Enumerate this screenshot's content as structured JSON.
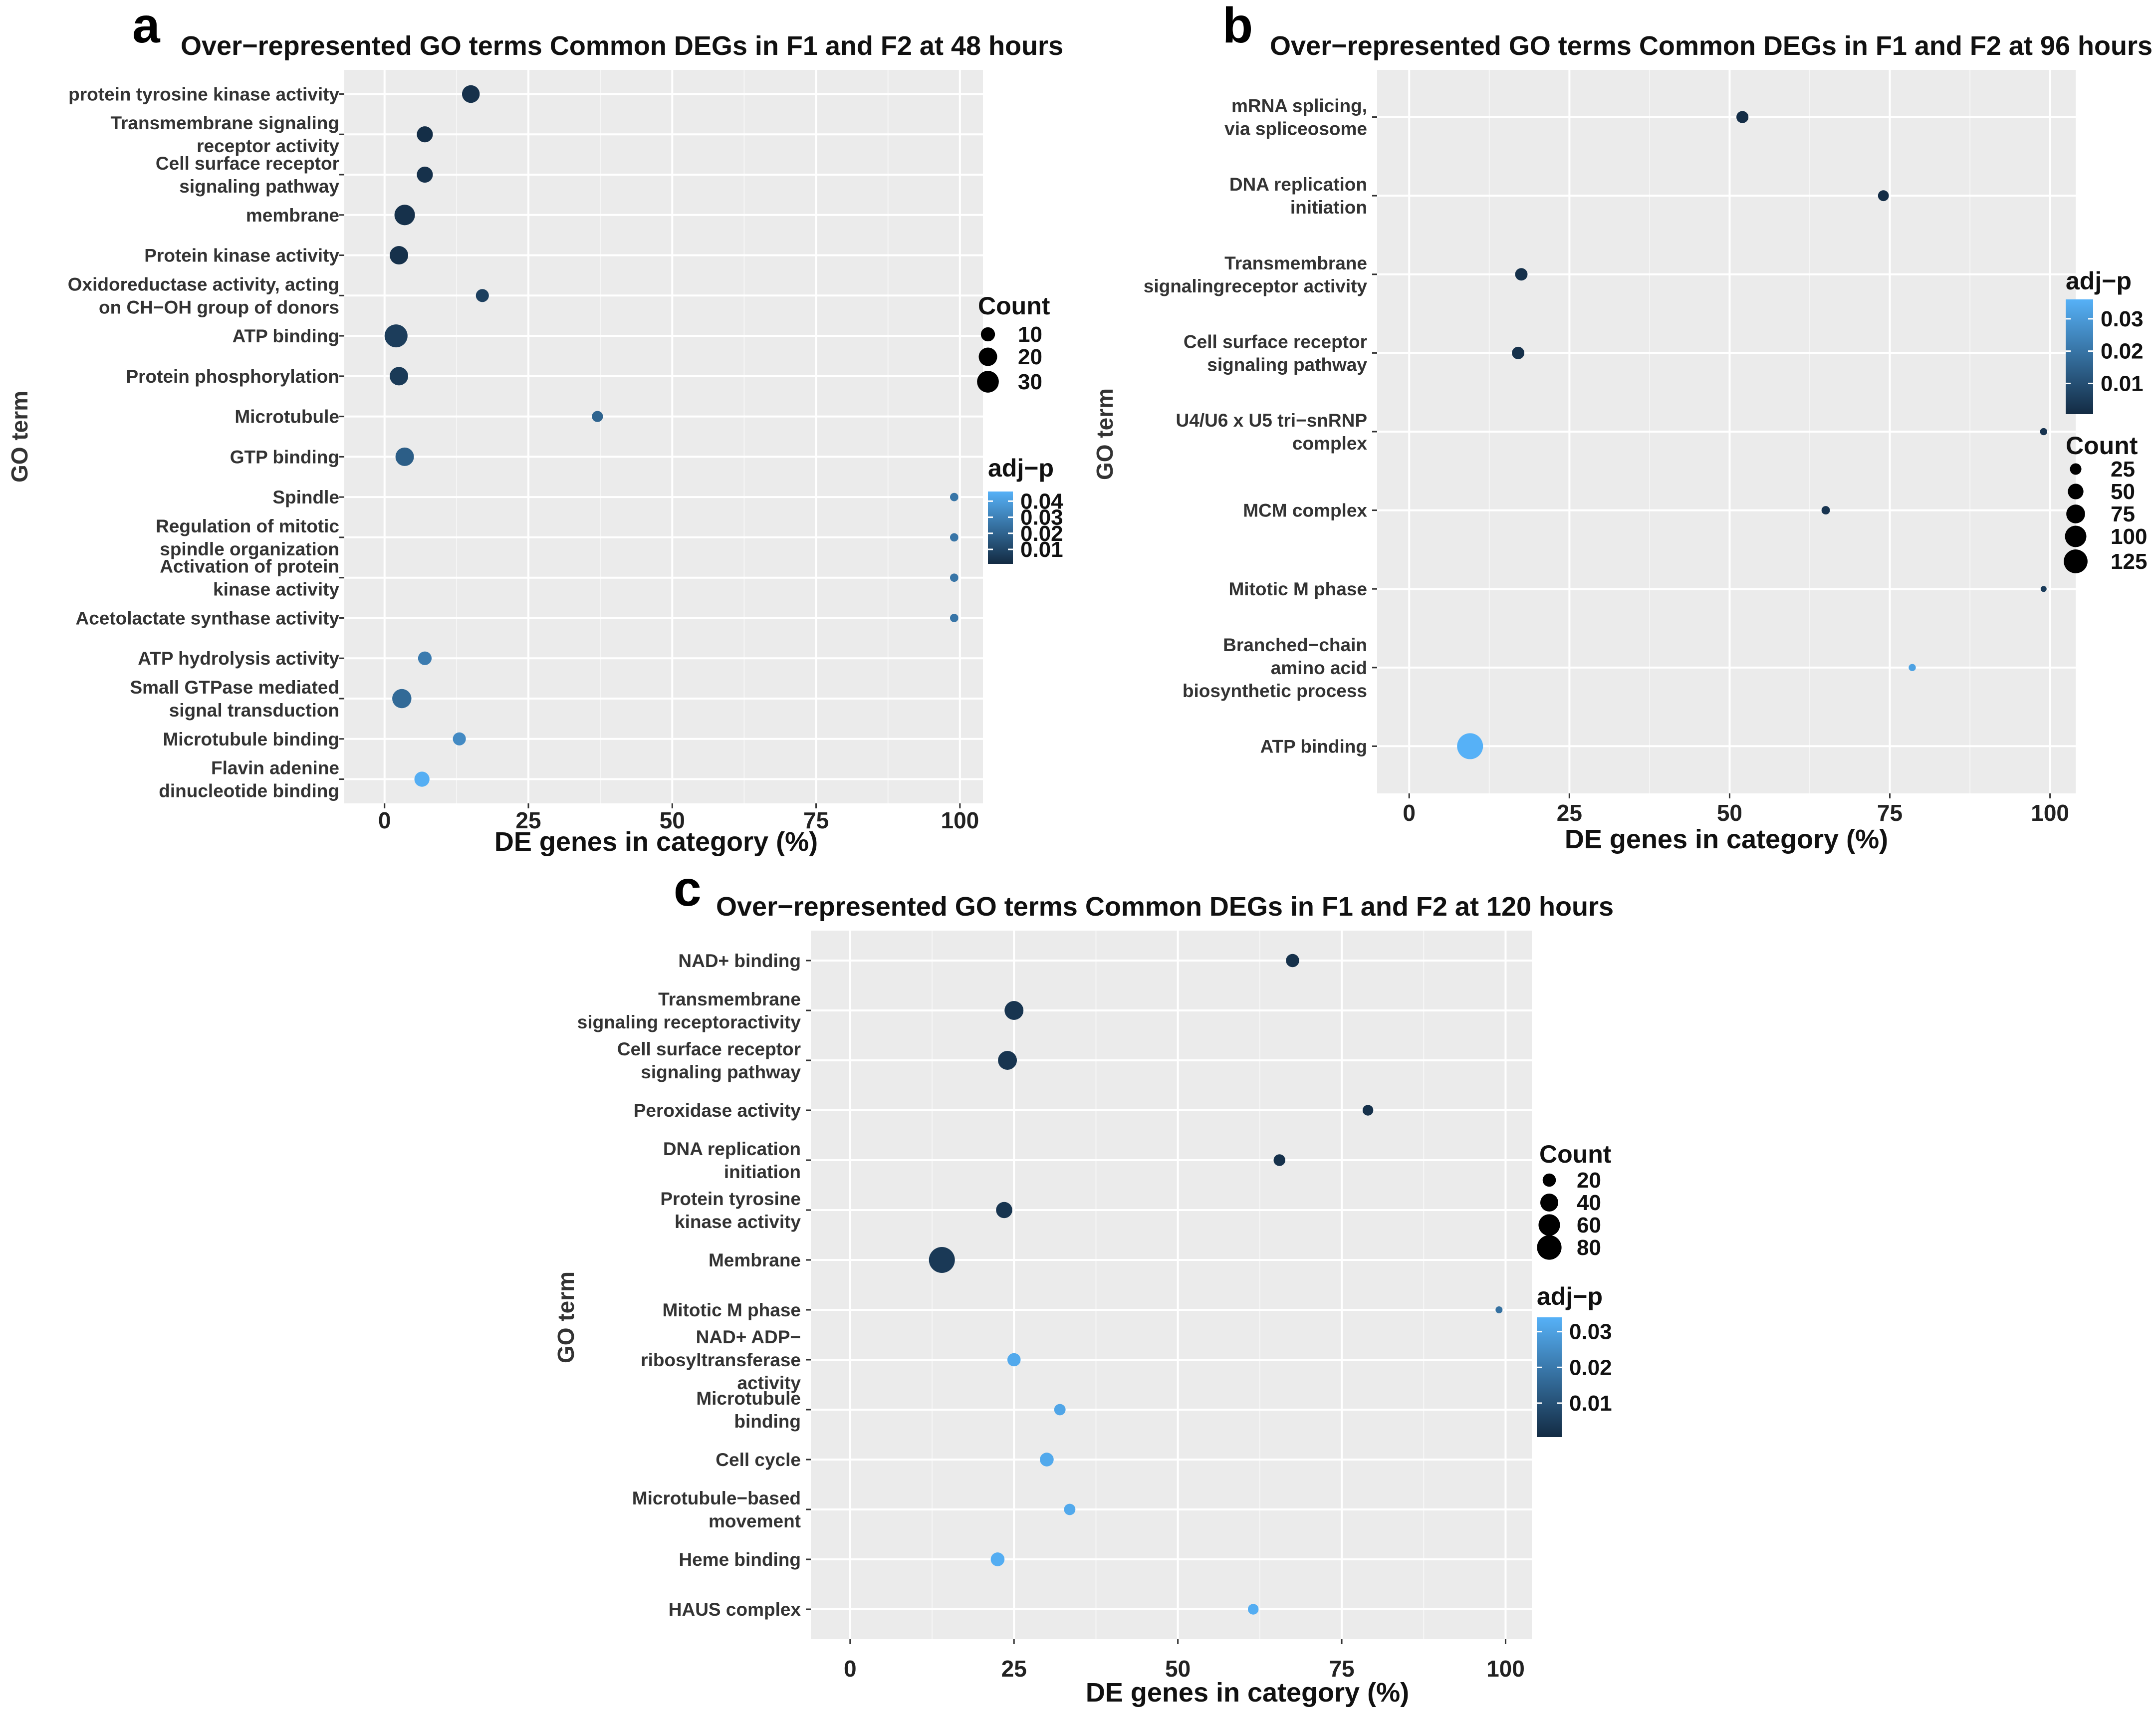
{
  "chart_data": [
    {
      "panel": "a",
      "type": "scatter",
      "title": "Over−represented GO terms   Common DEGs in F1 and F2 at 48 hours",
      "xlabel": "DE genes in category (%)",
      "ylabel": "GO term",
      "xlim": [
        -7,
        104
      ],
      "xticks": [
        0,
        25,
        50,
        75,
        100
      ],
      "grid": true,
      "categories": [
        [
          "protein tyrosine kinase activity"
        ],
        [
          "Transmembrane signaling",
          "receptor activity"
        ],
        [
          "Cell surface receptor",
          "signaling pathway"
        ],
        [
          "membrane"
        ],
        [
          "Protein kinase activity"
        ],
        [
          "Oxidoreductase activity, acting",
          "on CH−OH group of donors"
        ],
        [
          "ATP binding"
        ],
        [
          "Protein phosphorylation"
        ],
        [
          "Microtubule"
        ],
        [
          "GTP binding"
        ],
        [
          "Spindle"
        ],
        [
          "Regulation of mitotic",
          "spindle organization"
        ],
        [
          "Activation of protein",
          "kinase activity"
        ],
        [
          "Acetolactate synthase activity"
        ],
        [
          "ATP hydrolysis activity"
        ],
        [
          "Small GTPase mediated",
          "signal transduction"
        ],
        [
          "Microtubule binding"
        ],
        [
          "Flavin adenine",
          "dinucleotide binding"
        ]
      ],
      "x": [
        15,
        7,
        7,
        3.5,
        2.5,
        17,
        2,
        2.5,
        37,
        3.5,
        99,
        99,
        99,
        99,
        7,
        3,
        13,
        6.5
      ],
      "count": [
        18,
        14,
        14,
        26,
        20,
        8,
        34,
        20,
        5,
        20,
        2,
        2,
        2,
        2,
        9,
        22,
        8,
        12
      ],
      "adj_p": [
        0.003,
        0.002,
        0.003,
        0.003,
        0.003,
        0.008,
        0.007,
        0.006,
        0.02,
        0.018,
        0.026,
        0.026,
        0.026,
        0.026,
        0.028,
        0.022,
        0.033,
        0.045
      ],
      "size_legend": {
        "title": "Count",
        "values": [
          10,
          20,
          30
        ],
        "labels": [
          "10",
          "20",
          "30"
        ]
      },
      "color_legend": {
        "title": "adj−p",
        "ticks": [
          0.04,
          0.03,
          0.02,
          0.01
        ],
        "labels": [
          "0.04",
          "0.03",
          "0.02",
          "0.01"
        ],
        "range": [
          0.001,
          0.046
        ]
      },
      "size_range": [
        1,
        34
      ],
      "legend_order": [
        "size",
        "color"
      ]
    },
    {
      "panel": "b",
      "type": "scatter",
      "title": "Over−represented GO terms   Common DEGs in F1 and F2 at 96 hours",
      "xlabel": "DE genes in category (%)",
      "ylabel": "GO term",
      "xlim": [
        -5,
        104
      ],
      "xticks": [
        0,
        25,
        50,
        75,
        100
      ],
      "grid": true,
      "categories": [
        [
          "mRNA splicing,",
          "via spliceosome"
        ],
        [
          "DNA replication",
          "initiation"
        ],
        [
          "Transmembrane",
          "signalingreceptor activity"
        ],
        [
          "Cell surface receptor",
          "signaling pathway"
        ],
        [
          "U4/U6 x U5 tri−snRNP",
          "complex"
        ],
        [
          "MCM complex"
        ],
        [
          "Mitotic M phase"
        ],
        [
          "Branched−chain",
          "amino acid",
          "biosynthetic process"
        ],
        [
          "ATP binding"
        ]
      ],
      "x": [
        52,
        74,
        17.5,
        17,
        99,
        65,
        99,
        78.5,
        9.5
      ],
      "count": [
        28,
        22,
        30,
        30,
        8,
        12,
        5,
        8,
        150
      ],
      "adj_p": [
        0.001,
        0.001,
        0.002,
        0.002,
        0.003,
        0.003,
        0.005,
        0.032,
        0.036
      ],
      "size_legend": {
        "title": "Count",
        "values": [
          25,
          50,
          75,
          100,
          125
        ],
        "labels": [
          "25",
          "50",
          "75",
          "100",
          "125"
        ]
      },
      "color_legend": {
        "title": "adj−p",
        "ticks": [
          0.03,
          0.02,
          0.01
        ],
        "labels": [
          "0.03",
          "0.02",
          "0.01"
        ],
        "range": [
          0.0005,
          0.036
        ]
      },
      "size_range": [
        5,
        150
      ],
      "legend_order": [
        "color",
        "size"
      ]
    },
    {
      "panel": "c",
      "type": "scatter",
      "title": "Over−represented GO terms   Common DEGs in F1 and F2 at 120 hours",
      "xlabel": "DE genes in category (%)",
      "ylabel": "GO term",
      "xlim": [
        -6,
        104
      ],
      "xticks": [
        0,
        25,
        50,
        75,
        100
      ],
      "grid": true,
      "categories": [
        [
          "NAD+ binding"
        ],
        [
          "Transmembrane",
          "signaling receptoractivity"
        ],
        [
          "Cell surface receptor",
          "signaling pathway"
        ],
        [
          "Peroxidase activity"
        ],
        [
          "DNA replication",
          "initiation"
        ],
        [
          "Protein tyrosine",
          "kinase activity"
        ],
        [
          "Membrane"
        ],
        [
          "Mitotic M phase"
        ],
        [
          "NAD+ ADP−",
          "ribosyltransferase",
          "activity"
        ],
        [
          "Microtubule",
          "binding"
        ],
        [
          "Cell cycle"
        ],
        [
          "Microtubule−based",
          "movement"
        ],
        [
          "Heme binding"
        ],
        [
          "HAUS complex"
        ]
      ],
      "x": [
        67.5,
        25,
        24,
        79,
        65.5,
        23.5,
        14,
        99,
        25,
        32,
        30,
        33.5,
        22.5,
        61.5
      ],
      "count": [
        20,
        45,
        45,
        12,
        15,
        32,
        90,
        4,
        20,
        14,
        22,
        14,
        22,
        12
      ],
      "adj_p": [
        0.002,
        0.003,
        0.003,
        0.002,
        0.002,
        0.003,
        0.004,
        0.018,
        0.032,
        0.031,
        0.032,
        0.032,
        0.033,
        0.033
      ],
      "size_legend": {
        "title": "Count",
        "values": [
          20,
          40,
          60,
          80
        ],
        "labels": [
          "20",
          "40",
          "60",
          "80"
        ]
      },
      "color_legend": {
        "title": "adj−p",
        "ticks": [
          0.03,
          0.02,
          0.01
        ],
        "labels": [
          "0.03",
          "0.02",
          "0.01"
        ],
        "range": [
          0.0005,
          0.034
        ]
      },
      "size_range": [
        4,
        90
      ],
      "legend_order": [
        "size",
        "color"
      ]
    }
  ],
  "colors": {
    "panel_background": "#ebebeb",
    "gridline": "#ffffff",
    "low_adj_p": "#132b43",
    "high_adj_p": "#56b1f7",
    "dot_legend": "#000000"
  }
}
